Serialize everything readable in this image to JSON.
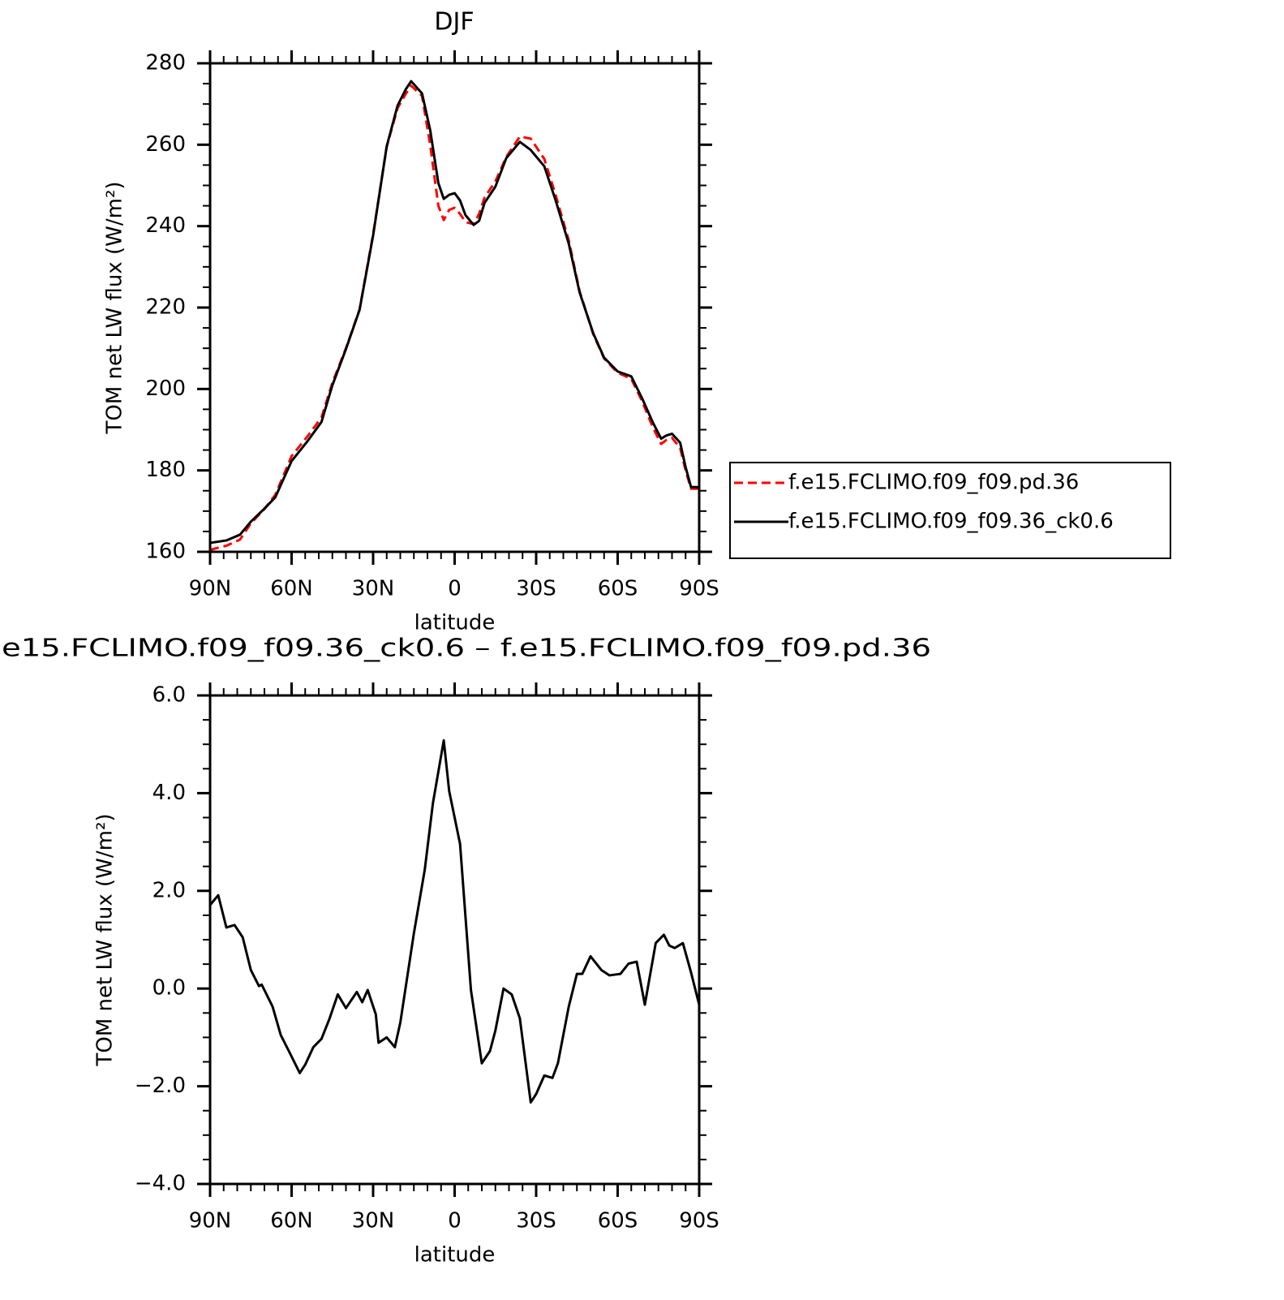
{
  "chart_data": [
    {
      "type": "line",
      "title": "DJF",
      "xlabel": "latitude",
      "ylabel": "TOM net LW flux (W/m²)",
      "x": [
        90,
        84,
        79,
        75,
        70,
        66,
        60,
        54,
        49,
        45,
        40,
        35,
        30,
        25,
        21,
        18,
        16,
        12,
        9,
        6,
        4,
        2,
        0,
        -2,
        -4,
        -7,
        -9,
        -11,
        -15,
        -19,
        -24,
        -28,
        -33,
        -37,
        -42,
        -46,
        -51,
        -55,
        -60,
        -65,
        -69,
        -73,
        -76,
        -78,
        -80,
        -83,
        -85,
        -87,
        -90
      ],
      "series": [
        {
          "name": "f.e15.FCLIMO.f09_f09.pd.36",
          "color": "#ff0000",
          "dashed": true,
          "values": [
            160.5,
            161.5,
            163,
            167,
            170.5,
            174,
            183.5,
            188.5,
            193,
            201.5,
            210,
            219.5,
            238,
            259.5,
            269,
            272.5,
            274.5,
            272,
            260,
            245,
            241.5,
            244,
            244.5,
            243,
            241,
            240.5,
            243,
            247,
            251,
            257,
            262,
            261.5,
            256.5,
            248,
            236.5,
            224,
            213.5,
            207.5,
            204,
            202.5,
            197,
            190.5,
            186.5,
            187.5,
            188,
            185.5,
            180,
            175.5,
            175.5
          ]
        },
        {
          "name": "f.e15.FCLIMO.f09_f09.36_ck0.6",
          "color": "#000000",
          "dashed": false,
          "values": [
            162.2,
            162.8,
            164.2,
            167.4,
            170.6,
            173.4,
            182.3,
            187.3,
            191.9,
            200.9,
            209.8,
            219.4,
            237.7,
            259.6,
            269.6,
            273.6,
            275.6,
            272.6,
            263.6,
            250.6,
            246.7,
            247.7,
            248.1,
            246.3,
            242.7,
            240.3,
            241.3,
            245.7,
            249.7,
            256.7,
            260.7,
            258.7,
            254.7,
            246.7,
            235.7,
            223.7,
            213.7,
            207.7,
            204.3,
            203.1,
            197.7,
            191.7,
            187.8,
            188.6,
            189,
            186.8,
            180.8,
            175.9,
            175.9
          ]
        }
      ],
      "xlim": [
        90,
        -90
      ],
      "xticks": [
        {
          "value": 90,
          "label": "90N"
        },
        {
          "value": 60,
          "label": "60N"
        },
        {
          "value": 30,
          "label": "30N"
        },
        0,
        {
          "value": -30,
          "label": "30S"
        },
        {
          "value": -60,
          "label": "60S"
        },
        {
          "value": -90,
          "label": "90S"
        }
      ],
      "xminorticks": [
        85,
        80,
        75,
        70,
        65,
        55,
        50,
        45,
        40,
        35,
        25,
        20,
        15,
        10,
        5,
        -5,
        -10,
        -15,
        -20,
        -25,
        -35,
        -40,
        -45,
        -50,
        -55,
        -65,
        -70,
        -75,
        -80,
        -85
      ],
      "ylim": [
        160,
        280
      ],
      "yticks": [
        160,
        180,
        200,
        220,
        240,
        260,
        280
      ],
      "yminorticks": [
        165,
        170,
        175,
        185,
        190,
        195,
        205,
        210,
        215,
        225,
        230,
        235,
        245,
        250,
        255,
        265,
        270,
        275
      ],
      "legend": "right"
    },
    {
      "type": "line",
      "title": "e15.FCLIMO.f09_f09.36_ck0.6 – f.e15.FCLIMO.f09_f09.pd.36",
      "xlabel": "latitude",
      "ylabel": "TOM net LW flux (W/m²)",
      "x": [
        90,
        87,
        84,
        81,
        78,
        75,
        72,
        71,
        67,
        64,
        61,
        57,
        55,
        52,
        49,
        46,
        43,
        40,
        36,
        34,
        32,
        29,
        28,
        25,
        22,
        20,
        15,
        11,
        8,
        4,
        2,
        -2,
        -6,
        -10,
        -13,
        -15,
        -18,
        -21,
        -24,
        -28,
        -30,
        -33,
        -36,
        -38,
        -42,
        -45,
        -47,
        -50,
        -54,
        -57,
        -61,
        -64,
        -67,
        -70,
        -74,
        -77,
        -79,
        -81,
        -84,
        -87,
        -90
      ],
      "series": [
        {
          "color": "#000000",
          "dashed": false,
          "values": [
            1.71,
            1.91,
            1.25,
            1.3,
            1.05,
            0.38,
            0.05,
            0.08,
            -0.37,
            -0.95,
            -1.28,
            -1.73,
            -1.56,
            -1.2,
            -1.03,
            -0.61,
            -0.12,
            -0.4,
            -0.07,
            -0.28,
            -0.03,
            -0.53,
            -1.11,
            -1,
            -1.2,
            -0.7,
            1.13,
            2.43,
            3.79,
            5.08,
            4.04,
            2.96,
            -0.03,
            -1.53,
            -1.28,
            -0.86,
            0,
            -0.12,
            -0.61,
            -2.33,
            -2.16,
            -1.78,
            -1.83,
            -1.53,
            -0.37,
            0.3,
            0.3,
            0.66,
            0.38,
            0.27,
            0.3,
            0.51,
            0.55,
            -0.33,
            0.93,
            1.1,
            0.88,
            0.83,
            0.93,
            0.33,
            -0.33
          ]
        }
      ],
      "xlim": [
        90,
        -90
      ],
      "xticks": [
        {
          "value": 90,
          "label": "90N"
        },
        {
          "value": 60,
          "label": "60N"
        },
        {
          "value": 30,
          "label": "30N"
        },
        0,
        {
          "value": -30,
          "label": "30S"
        },
        {
          "value": -60,
          "label": "60S"
        },
        {
          "value": -90,
          "label": "90S"
        }
      ],
      "xminorticks": [
        85,
        80,
        75,
        70,
        65,
        55,
        50,
        45,
        40,
        35,
        25,
        20,
        15,
        10,
        5,
        -5,
        -10,
        -15,
        -20,
        -25,
        -35,
        -40,
        -45,
        -50,
        -55,
        -65,
        -70,
        -75,
        -80,
        -85
      ],
      "ylim": [
        -4,
        6
      ],
      "yticks": [
        {
          "value": -4,
          "label": "−4.0"
        },
        {
          "value": -2,
          "label": "−2.0"
        },
        {
          "value": 0,
          "label": "0.0"
        },
        {
          "value": 2,
          "label": "2.0"
        },
        {
          "value": 4,
          "label": "4.0"
        },
        {
          "value": 6,
          "label": "6.0"
        }
      ],
      "yminorticks": [
        -3.5,
        -3,
        -2.5,
        -1.5,
        -1,
        -0.5,
        0.5,
        1,
        1.5,
        2.5,
        3,
        3.5,
        4.5,
        5,
        5.5
      ]
    }
  ]
}
